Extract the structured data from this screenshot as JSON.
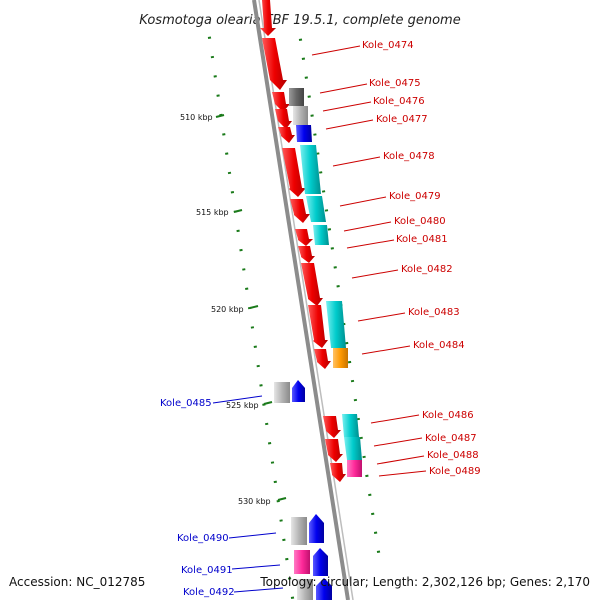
{
  "title": "Kosmotoga olearia TBF 19.5.1, complete genome",
  "accession": "Accession: NC_012785",
  "summary": "Topology: circular; Length: 2,302,126 bp; Genes: 2,170",
  "colors": {
    "forward_cds": "#ee0000",
    "reverse_cds": "#0000ee",
    "cyan_cds": "#00cccc",
    "gray_gene": "#b4b4b4",
    "dark_gene": "#666666",
    "orange_gene": "#ff9900",
    "pink_gene": "#ff2a9a",
    "tick": "#1a7a1a",
    "backbone": "#888888"
  },
  "kbp_ticks": [
    "510 kbp",
    "515 kbp",
    "520 kbp",
    "525 kbp",
    "530 kbp"
  ],
  "gene_labels": [
    {
      "name": "Kole_0474",
      "strand": "forward"
    },
    {
      "name": "Kole_0475",
      "strand": "forward"
    },
    {
      "name": "Kole_0476",
      "strand": "forward"
    },
    {
      "name": "Kole_0477",
      "strand": "forward"
    },
    {
      "name": "Kole_0478",
      "strand": "forward"
    },
    {
      "name": "Kole_0479",
      "strand": "forward"
    },
    {
      "name": "Kole_0480",
      "strand": "forward"
    },
    {
      "name": "Kole_0481",
      "strand": "forward"
    },
    {
      "name": "Kole_0482",
      "strand": "forward"
    },
    {
      "name": "Kole_0483",
      "strand": "forward"
    },
    {
      "name": "Kole_0484",
      "strand": "forward"
    },
    {
      "name": "Kole_0485",
      "strand": "reverse"
    },
    {
      "name": "Kole_0486",
      "strand": "forward"
    },
    {
      "name": "Kole_0487",
      "strand": "forward"
    },
    {
      "name": "Kole_0488",
      "strand": "forward"
    },
    {
      "name": "Kole_0489",
      "strand": "forward"
    },
    {
      "name": "Kole_0490",
      "strand": "reverse"
    },
    {
      "name": "Kole_0491",
      "strand": "reverse"
    },
    {
      "name": "Kole_0492",
      "strand": "reverse"
    }
  ]
}
